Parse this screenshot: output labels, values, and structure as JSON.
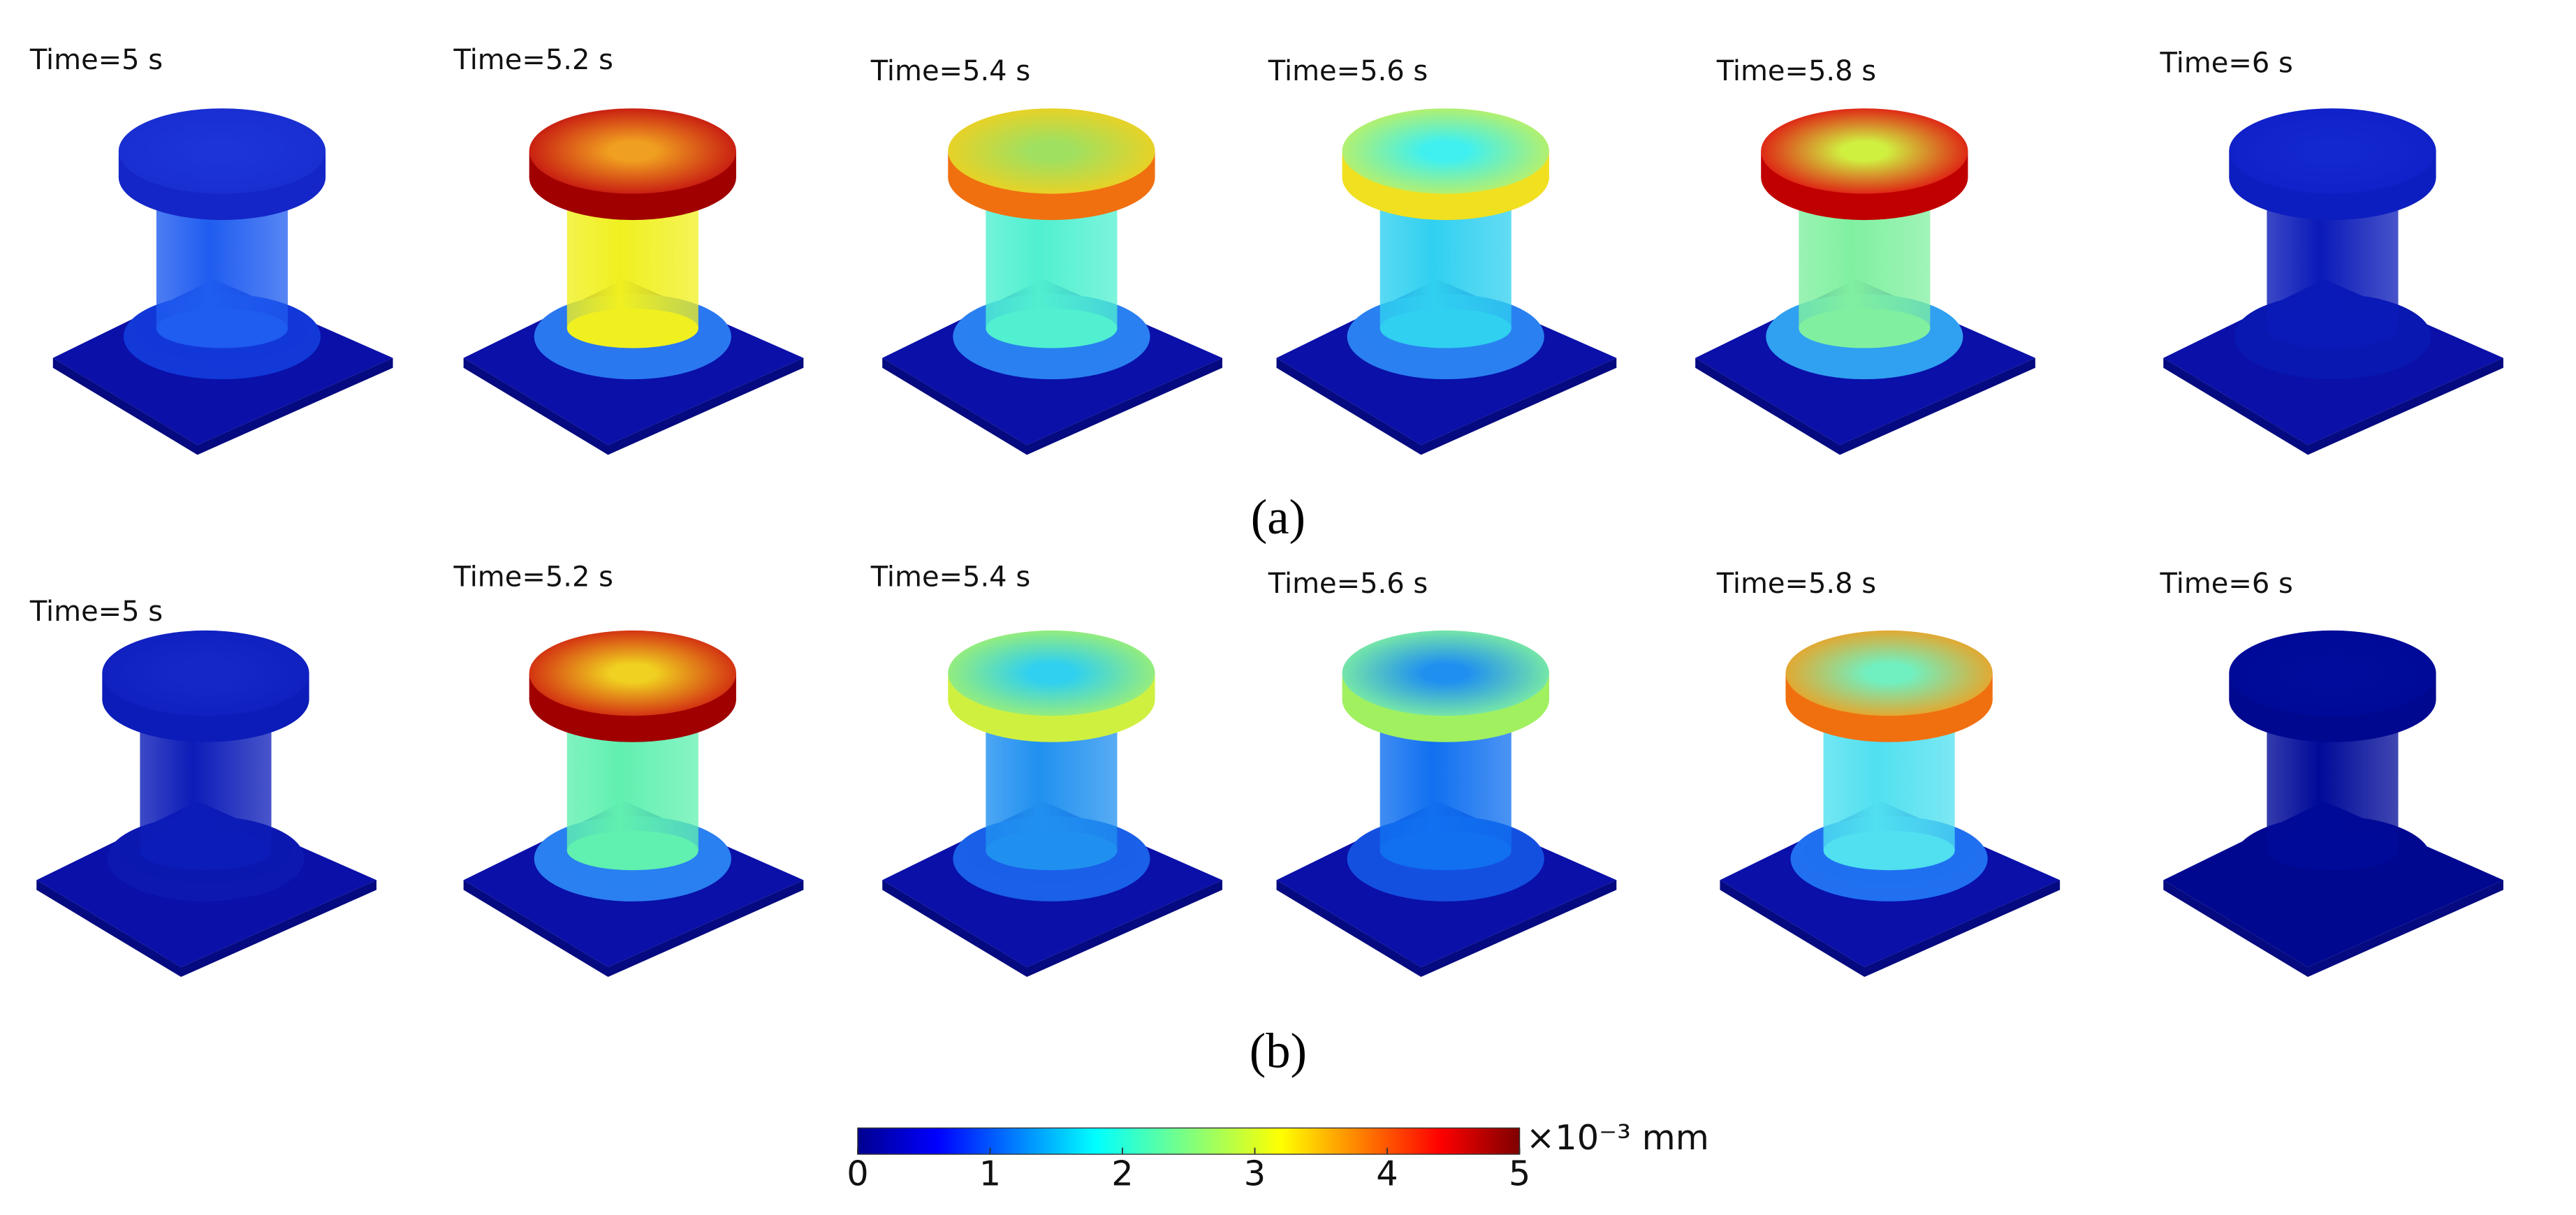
{
  "panels": [
    {
      "caption": "(a)",
      "frames": [
        {
          "time": "Time=5 s"
        },
        {
          "time": "Time=5.2 s"
        },
        {
          "time": "Time=5.4 s"
        },
        {
          "time": "Time=5.6 s"
        },
        {
          "time": "Time=5.8 s"
        },
        {
          "time": "Time=6 s"
        }
      ]
    },
    {
      "caption": "(b)",
      "frames": [
        {
          "time": "Time=5 s"
        },
        {
          "time": "Time=5.2 s"
        },
        {
          "time": "Time=5.4 s"
        },
        {
          "time": "Time=5.6 s"
        },
        {
          "time": "Time=5.8 s"
        },
        {
          "time": "Time=6 s"
        }
      ]
    }
  ],
  "colorbar": {
    "lim": [
      0,
      5
    ],
    "ticks": [
      0,
      1,
      2,
      3,
      4,
      5
    ],
    "unit": "×10⁻³  mm"
  }
}
